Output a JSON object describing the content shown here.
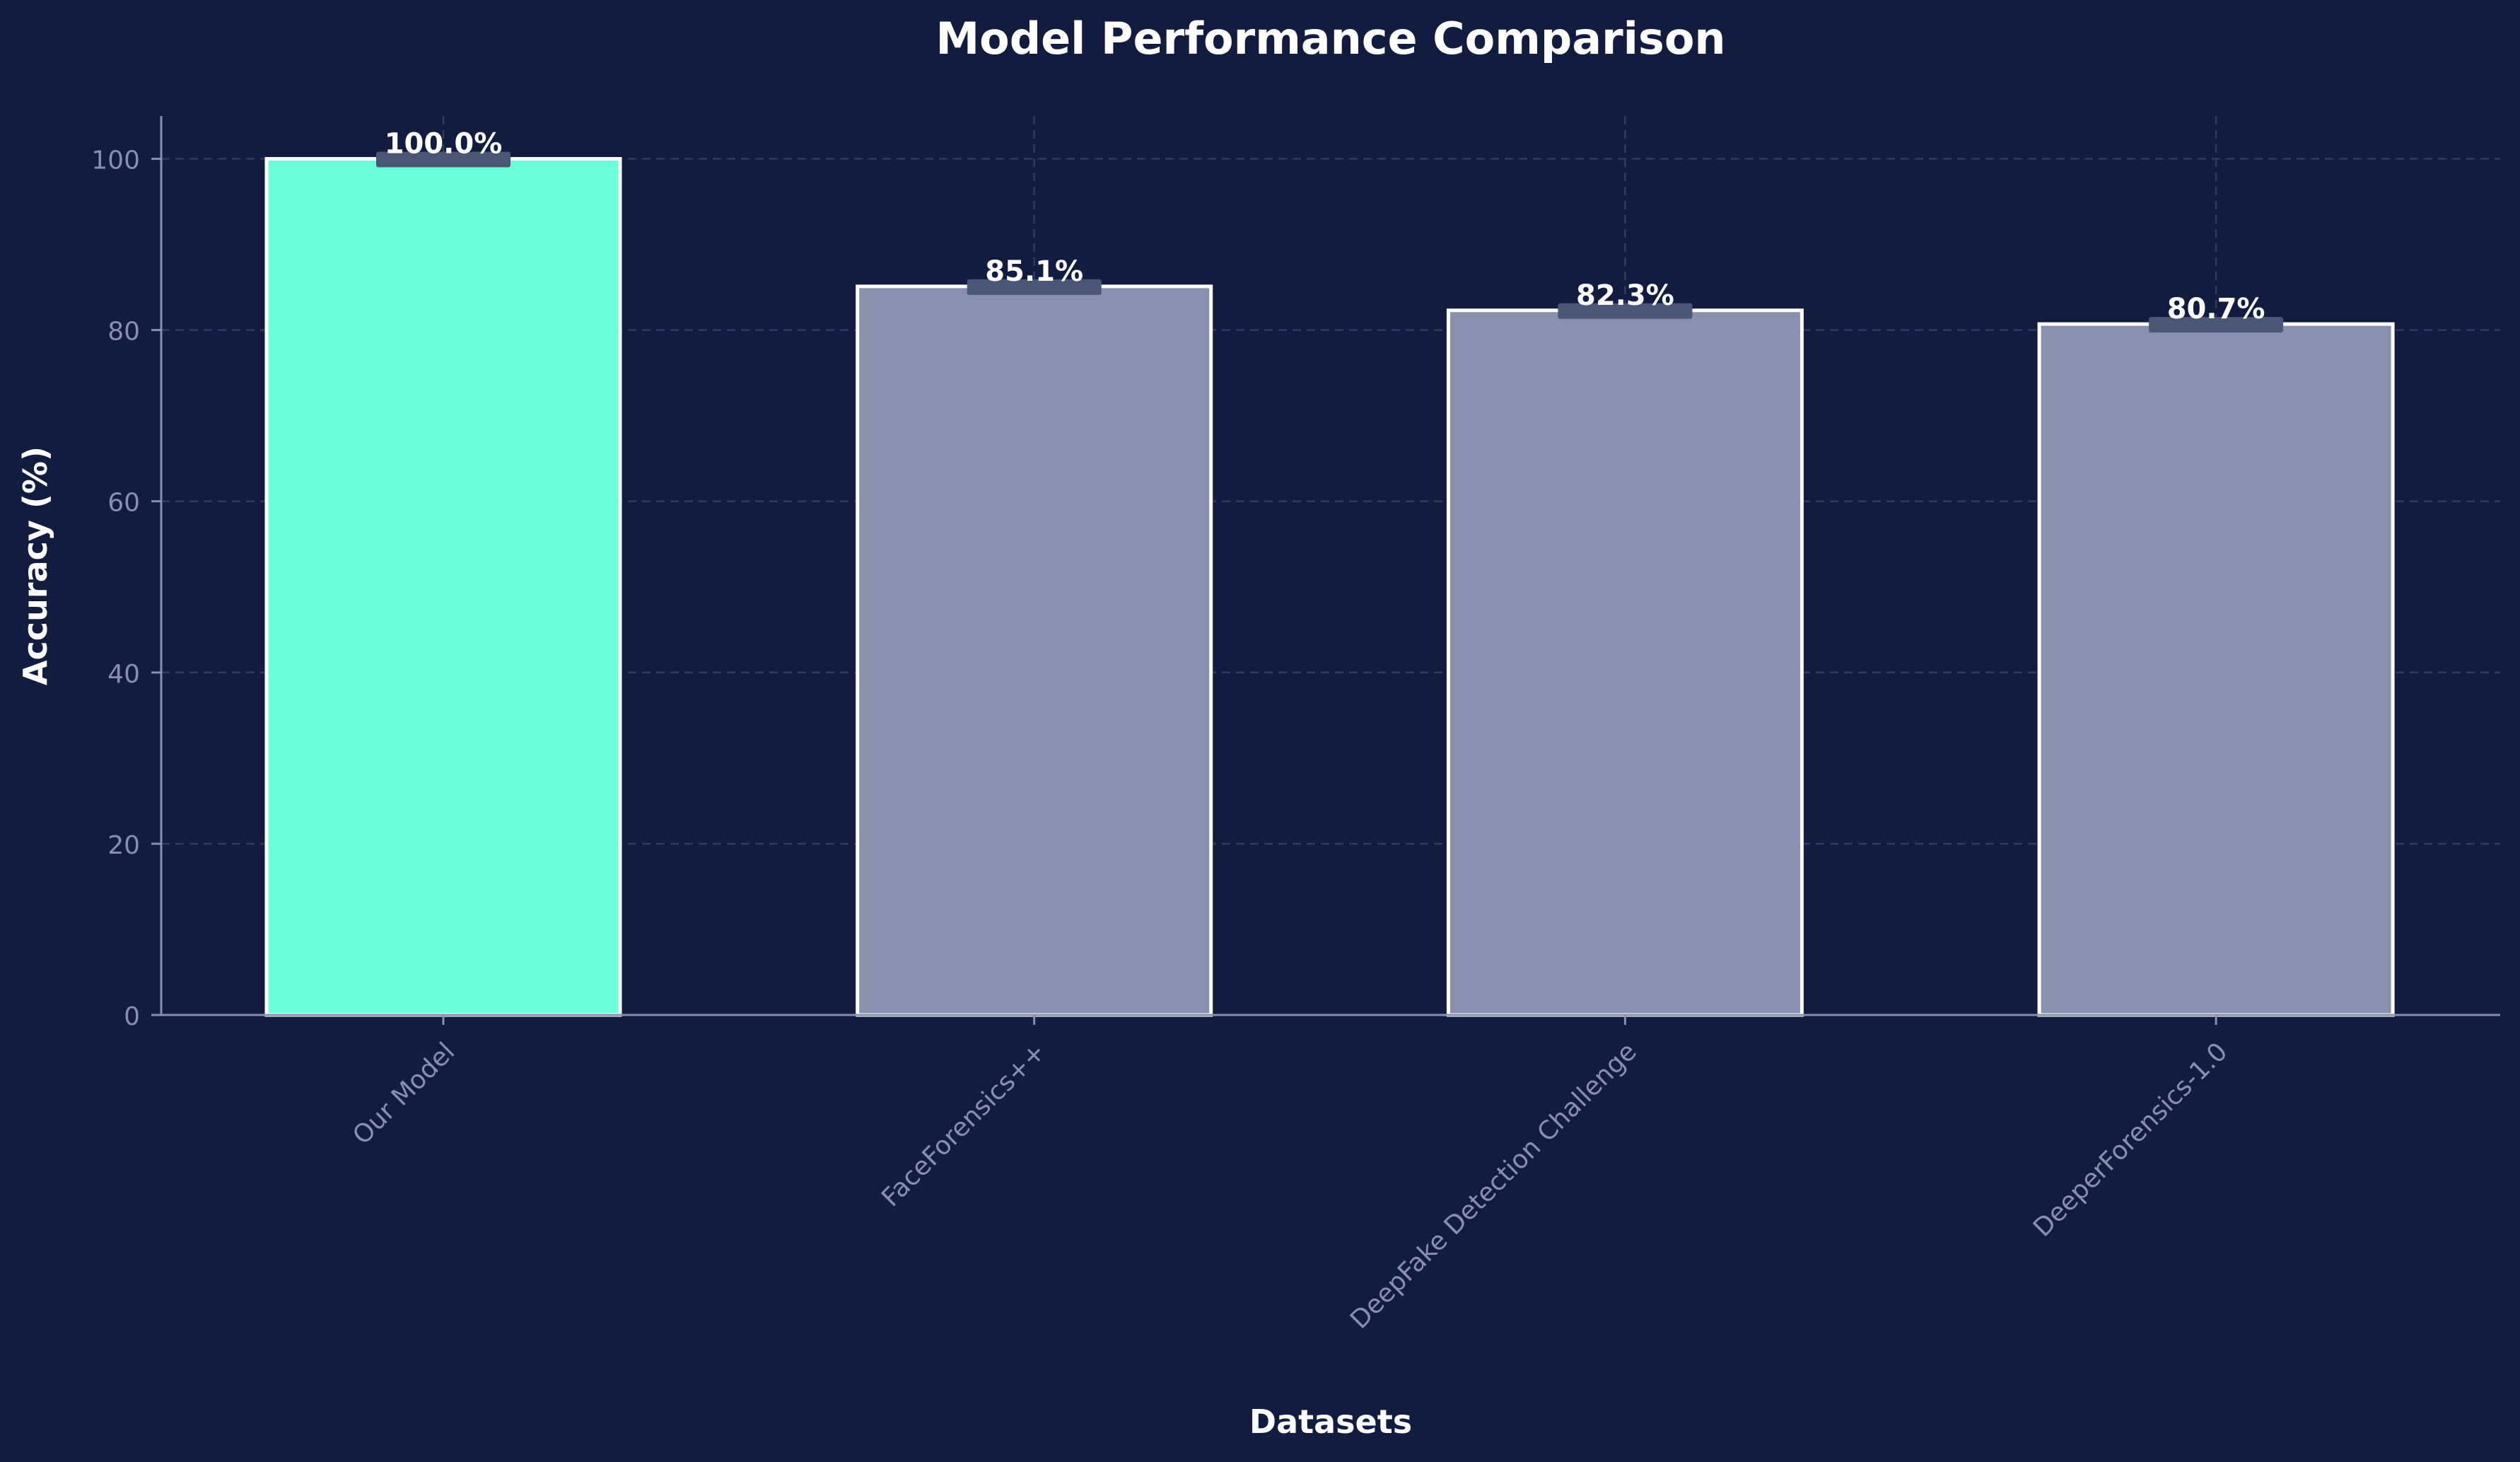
{
  "chart_data": {
    "type": "bar",
    "title": "Model Performance Comparison",
    "xlabel": "Datasets",
    "ylabel": "Accuracy (%)",
    "categories": [
      "Our Model",
      "FaceForensics++",
      "DeepFake Detection Challenge",
      "DeeperForensics-1.0"
    ],
    "values": [
      100.0,
      85.1,
      82.3,
      80.7
    ],
    "value_labels": [
      "100.0%",
      "85.1%",
      "82.3%",
      "80.7%"
    ],
    "ylim": [
      0,
      105
    ],
    "yticks": [
      0,
      20,
      40,
      60,
      80,
      100
    ],
    "ytick_labels": [
      "0",
      "20",
      "40",
      "60",
      "80",
      "100"
    ],
    "grid": true,
    "grid_style": "dashed",
    "colors": {
      "background": "#121c41",
      "highlight_bar": "#69ffd9",
      "other_bars": "#8890ad",
      "bar_edge": "#ffffff",
      "axis": "#8890ad",
      "tick_label": "#8890ad",
      "title": "#ffffff",
      "label_badge": "#4a5675"
    }
  }
}
